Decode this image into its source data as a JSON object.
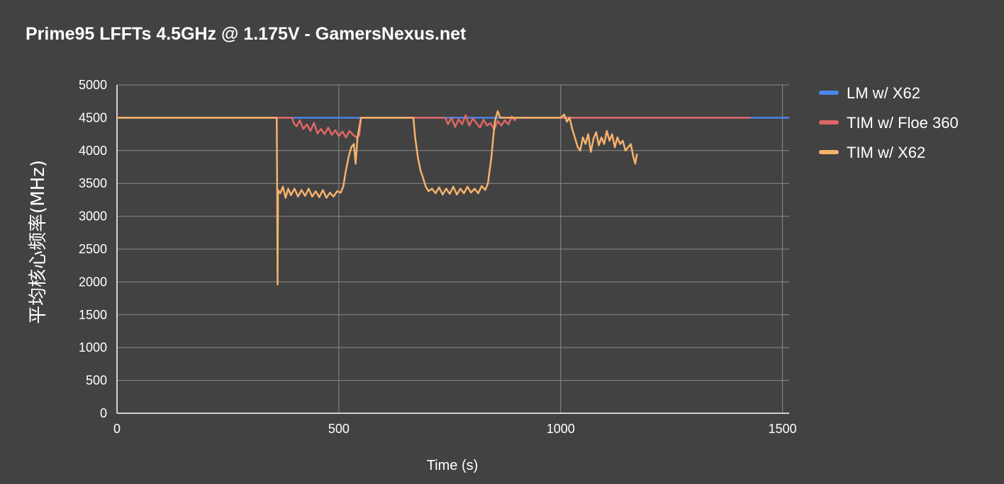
{
  "chart_data": {
    "type": "line",
    "title": "Prime95 LFFTs 4.5GHz @ 1.175V - GamersNexus.net",
    "xlabel": "Time (s)",
    "ylabel": "平均核心频率(MHz)",
    "xlim": [
      0,
      1515
    ],
    "ylim": [
      0,
      5000
    ],
    "x_ticks": [
      "0",
      "500",
      "1000",
      "1500"
    ],
    "y_ticks": [
      "0",
      "500",
      "1000",
      "1500",
      "2000",
      "2500",
      "3000",
      "3500",
      "4000",
      "4500",
      "5000"
    ],
    "grid": true,
    "legend_position": "right",
    "series": [
      {
        "name": "LM w/ X62",
        "color": "#4a86e8",
        "points": [
          [
            0,
            4500
          ],
          [
            1515,
            4500
          ]
        ]
      },
      {
        "name": "TIM w/ Floe 360",
        "color": "#e06666",
        "points": [
          [
            0,
            4500
          ],
          [
            395,
            4500
          ],
          [
            398,
            4420
          ],
          [
            405,
            4370
          ],
          [
            412,
            4460
          ],
          [
            420,
            4330
          ],
          [
            428,
            4400
          ],
          [
            436,
            4300
          ],
          [
            444,
            4420
          ],
          [
            452,
            4260
          ],
          [
            460,
            4330
          ],
          [
            468,
            4250
          ],
          [
            476,
            4350
          ],
          [
            484,
            4240
          ],
          [
            492,
            4310
          ],
          [
            500,
            4220
          ],
          [
            508,
            4290
          ],
          [
            516,
            4200
          ],
          [
            524,
            4300
          ],
          [
            532,
            4240
          ],
          [
            540,
            4200
          ],
          [
            546,
            4230
          ],
          [
            550,
            4500
          ],
          [
            740,
            4500
          ],
          [
            746,
            4400
          ],
          [
            754,
            4500
          ],
          [
            762,
            4360
          ],
          [
            770,
            4480
          ],
          [
            778,
            4400
          ],
          [
            786,
            4540
          ],
          [
            794,
            4380
          ],
          [
            802,
            4490
          ],
          [
            810,
            4420
          ],
          [
            818,
            4350
          ],
          [
            826,
            4470
          ],
          [
            834,
            4380
          ],
          [
            842,
            4420
          ],
          [
            850,
            4320
          ],
          [
            858,
            4450
          ],
          [
            866,
            4380
          ],
          [
            874,
            4460
          ],
          [
            882,
            4400
          ],
          [
            890,
            4520
          ],
          [
            896,
            4460
          ],
          [
            900,
            4500
          ],
          [
            1428,
            4500
          ]
        ]
      },
      {
        "name": "TIM w/ X62",
        "color": "#f6b26b",
        "points": [
          [
            0,
            4500
          ],
          [
            360,
            4500
          ],
          [
            361,
            3400
          ],
          [
            362,
            1960
          ],
          [
            363,
            3400
          ],
          [
            368,
            3350
          ],
          [
            374,
            3450
          ],
          [
            380,
            3280
          ],
          [
            386,
            3420
          ],
          [
            392,
            3320
          ],
          [
            400,
            3420
          ],
          [
            408,
            3300
          ],
          [
            416,
            3400
          ],
          [
            424,
            3310
          ],
          [
            432,
            3420
          ],
          [
            440,
            3300
          ],
          [
            448,
            3380
          ],
          [
            456,
            3290
          ],
          [
            464,
            3400
          ],
          [
            472,
            3280
          ],
          [
            480,
            3360
          ],
          [
            488,
            3300
          ],
          [
            496,
            3380
          ],
          [
            504,
            3360
          ],
          [
            510,
            3450
          ],
          [
            516,
            3700
          ],
          [
            522,
            3900
          ],
          [
            528,
            4050
          ],
          [
            534,
            4100
          ],
          [
            538,
            3800
          ],
          [
            542,
            4200
          ],
          [
            546,
            4350
          ],
          [
            550,
            4500
          ],
          [
            668,
            4500
          ],
          [
            672,
            4200
          ],
          [
            678,
            3900
          ],
          [
            684,
            3700
          ],
          [
            690,
            3580
          ],
          [
            696,
            3450
          ],
          [
            702,
            3380
          ],
          [
            710,
            3420
          ],
          [
            718,
            3350
          ],
          [
            726,
            3440
          ],
          [
            734,
            3330
          ],
          [
            742,
            3420
          ],
          [
            750,
            3340
          ],
          [
            758,
            3450
          ],
          [
            766,
            3330
          ],
          [
            774,
            3420
          ],
          [
            782,
            3350
          ],
          [
            790,
            3450
          ],
          [
            798,
            3360
          ],
          [
            806,
            3420
          ],
          [
            814,
            3350
          ],
          [
            822,
            3460
          ],
          [
            830,
            3400
          ],
          [
            836,
            3500
          ],
          [
            840,
            3700
          ],
          [
            844,
            3900
          ],
          [
            848,
            4200
          ],
          [
            852,
            4450
          ],
          [
            858,
            4600
          ],
          [
            864,
            4500
          ],
          [
            1000,
            4500
          ],
          [
            1008,
            4550
          ],
          [
            1014,
            4440
          ],
          [
            1020,
            4500
          ],
          [
            1026,
            4330
          ],
          [
            1032,
            4200
          ],
          [
            1038,
            4060
          ],
          [
            1044,
            4000
          ],
          [
            1050,
            4200
          ],
          [
            1056,
            4100
          ],
          [
            1062,
            4250
          ],
          [
            1068,
            3980
          ],
          [
            1074,
            4180
          ],
          [
            1080,
            4280
          ],
          [
            1086,
            4080
          ],
          [
            1092,
            4200
          ],
          [
            1098,
            4100
          ],
          [
            1104,
            4300
          ],
          [
            1110,
            4150
          ],
          [
            1116,
            4250
          ],
          [
            1122,
            4050
          ],
          [
            1128,
            4200
          ],
          [
            1134,
            4100
          ],
          [
            1140,
            4150
          ],
          [
            1146,
            4000
          ],
          [
            1152,
            4050
          ],
          [
            1158,
            4100
          ],
          [
            1164,
            3900
          ],
          [
            1168,
            3800
          ],
          [
            1172,
            3950
          ]
        ]
      }
    ]
  }
}
